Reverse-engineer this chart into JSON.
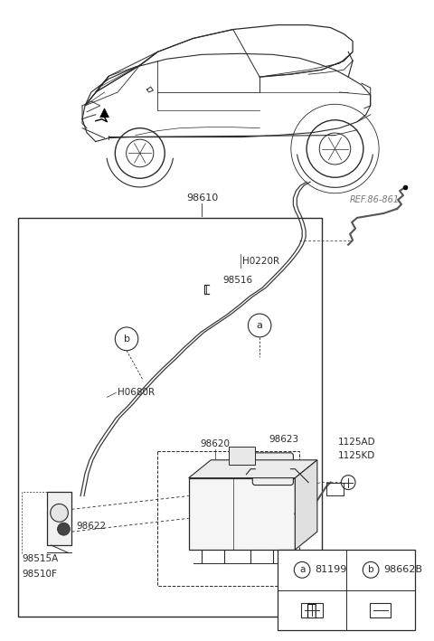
{
  "bg_color": "#ffffff",
  "line_color": "#2a2a2a",
  "text_color": "#2a2a2a",
  "gray_color": "#777777",
  "fig_w": 4.8,
  "fig_h": 7.09,
  "dpi": 100,
  "xlim": [
    0,
    480
  ],
  "ylim": [
    0,
    709
  ],
  "legend_items": [
    {
      "circle": "a",
      "part": "81199"
    },
    {
      "circle": "b",
      "part": "98662B"
    }
  ]
}
